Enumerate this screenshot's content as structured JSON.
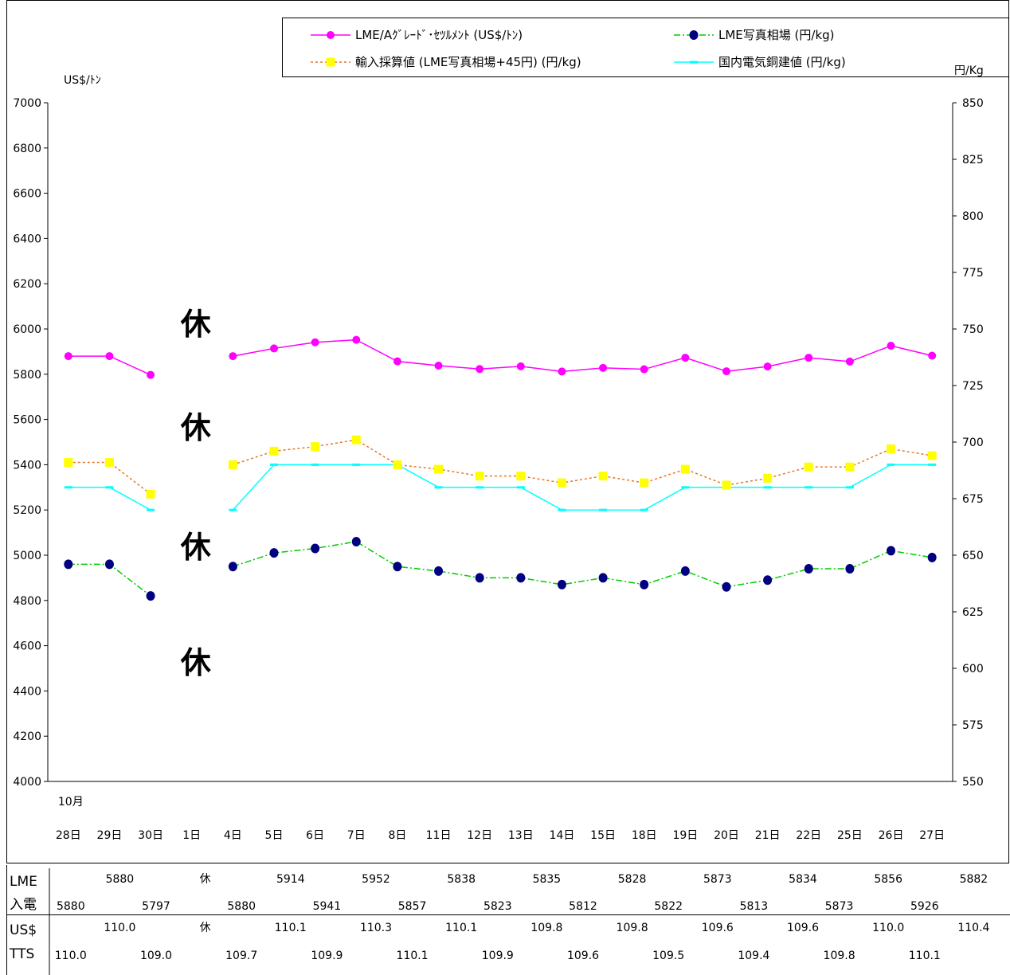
{
  "chart_data": {
    "type": "line",
    "categories": [
      "28日",
      "29日",
      "30日",
      "1日",
      "4日",
      "5日",
      "6日",
      "7日",
      "8日",
      "11日",
      "12日",
      "13日",
      "14日",
      "15日",
      "18日",
      "19日",
      "20日",
      "21日",
      "22日",
      "25日",
      "26日",
      "27日"
    ],
    "month_label": "10月",
    "left_axis": {
      "unit": "US$/ﾄﾝ",
      "min": 4000,
      "max": 7000,
      "step": 200
    },
    "right_axis": {
      "unit": "円/Kg",
      "min": 550,
      "max": 850,
      "step": 25
    },
    "series": [
      {
        "name": "LME/Aｸﾞﾚｰﾄﾞ･ｾﾂﾙﾒﾝﾄ (US$/ﾄﾝ)",
        "axis": "left",
        "color": "#ff00ff",
        "marker": "circle",
        "dash": "",
        "values": [
          5880,
          5880,
          5797,
          null,
          5880,
          5914,
          5941,
          5952,
          5857,
          5838,
          5823,
          5835,
          5812,
          5828,
          5822,
          5873,
          5813,
          5834,
          5873,
          5856,
          5926,
          5882
        ]
      },
      {
        "name": "LME写真相場 (円/kg)",
        "axis": "right",
        "color": "#00cc00",
        "marker": "dot",
        "marker_color": "#000080",
        "dash": "8,3,2,3",
        "values": [
          646,
          646,
          632,
          null,
          645,
          651,
          653,
          656,
          645,
          643,
          640,
          640,
          637,
          640,
          637,
          643,
          636,
          639,
          644,
          644,
          652,
          649
        ]
      },
      {
        "name": "輸入採算値 (LME写真相場+45円) (円/kg)",
        "axis": "right",
        "color": "#e87722",
        "marker": "square",
        "marker_color": "#ffff00",
        "dash": "3,3",
        "values": [
          691,
          691,
          677,
          null,
          690,
          696,
          698,
          701,
          690,
          688,
          685,
          685,
          682,
          685,
          682,
          688,
          681,
          684,
          689,
          689,
          697,
          694
        ]
      },
      {
        "name": "国内電気銅建値 (円/kg)",
        "axis": "right",
        "color": "#00ffff",
        "marker": "dash",
        "dash": "",
        "values": [
          680,
          680,
          670,
          null,
          670,
          690,
          690,
          690,
          690,
          680,
          680,
          680,
          670,
          670,
          670,
          680,
          680,
          680,
          680,
          680,
          690,
          690
        ]
      }
    ],
    "holiday_marks": [
      "休",
      "休",
      "休",
      "休"
    ]
  },
  "table": {
    "rows": [
      {
        "label": "LME",
        "cells": [
          null,
          "5880",
          null,
          "休",
          null,
          "5914",
          null,
          "5952",
          null,
          "5838",
          null,
          "5835",
          null,
          "5828",
          null,
          "5873",
          null,
          "5834",
          null,
          "5856",
          null,
          "5882"
        ]
      },
      {
        "label": "入電",
        "cells": [
          "5880",
          null,
          "5797",
          null,
          "5880",
          null,
          "5941",
          null,
          "5857",
          null,
          "5823",
          null,
          "5812",
          null,
          "5822",
          null,
          "5813",
          null,
          "5873",
          null,
          "5926",
          null
        ]
      },
      {
        "label": "US$",
        "cells": [
          null,
          "110.0",
          null,
          "休",
          null,
          "110.1",
          null,
          "110.3",
          null,
          "110.1",
          null,
          "109.8",
          null,
          "109.8",
          null,
          "109.6",
          null,
          "109.6",
          null,
          "110.0",
          null,
          "110.4"
        ]
      },
      {
        "label": "TTS",
        "cells": [
          "110.0",
          null,
          "109.0",
          null,
          "109.7",
          null,
          "109.9",
          null,
          "110.1",
          null,
          "109.9",
          null,
          "109.6",
          null,
          "109.5",
          null,
          "109.4",
          null,
          "109.8",
          null,
          "110.1",
          null
        ]
      }
    ]
  }
}
